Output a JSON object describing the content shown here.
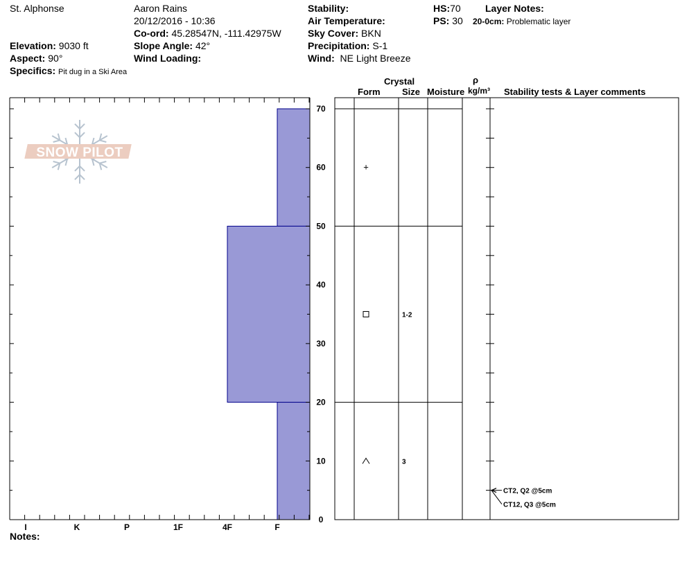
{
  "header": {
    "location": "St. Alphonse",
    "observer": "Aaron Rains",
    "datetime": "20/12/2016 - 10:36",
    "coord_label": "Co-ord:",
    "coord_value": "45.28547N, -111.42975W",
    "elevation_label": "Elevation:",
    "elevation_value": "9030 ft",
    "aspect_label": "Aspect:",
    "aspect_value": "90°",
    "specifics_label": "Specifics:",
    "specifics_value": "Pit dug in a Ski Area",
    "slope_label": "Slope Angle:",
    "slope_value": "42°",
    "wind_loading_label": "Wind Loading:",
    "wind_loading_value": "",
    "stability_label": "Stability:",
    "stability_value": "",
    "air_temp_label": "Air Temperature:",
    "air_temp_value": "",
    "sky_label": "Sky Cover:",
    "sky_value": "BKN",
    "precip_label": "Precipitation:",
    "precip_value": "S-1",
    "wind_label": "Wind:",
    "wind_value": "NE Light Breeze",
    "hs_label": "HS:",
    "hs_value": "70",
    "ps_label": "PS:",
    "ps_value": "30",
    "layer_notes_label": "Layer Notes:",
    "layer_note_range": "20-0cm:",
    "layer_note_text": "Problematic layer"
  },
  "logo_text": "SNOW PILOT",
  "notes_label": "Notes:",
  "table_headers": {
    "crystal": "Crystal",
    "form": "Form",
    "size": "Size",
    "moisture": "Moisture",
    "rho": "ρ",
    "density_unit": "kg/m³",
    "comments": "Stability tests & Layer comments"
  },
  "colors": {
    "hardness_fill": "#9999d6",
    "hardness_stroke": "#00008b"
  },
  "chart_data": {
    "type": "bar",
    "orientation": "horizontal-step",
    "y_axis": {
      "label": "",
      "range": [
        0,
        70
      ],
      "ticks": [
        0,
        10,
        20,
        30,
        40,
        50,
        60,
        70
      ]
    },
    "x_axis": {
      "label": "",
      "categories": [
        "I",
        "K",
        "P",
        "1F",
        "4F",
        "F"
      ],
      "reversed": true
    },
    "layers": [
      {
        "top": 70,
        "bottom": 50,
        "hardness": "F"
      },
      {
        "top": 50,
        "bottom": 20,
        "hardness": "4F"
      },
      {
        "top": 20,
        "bottom": 0,
        "hardness": "F"
      }
    ],
    "layer_boundaries": [
      70,
      50,
      20
    ],
    "crystals": [
      {
        "depth": 60,
        "form": "+",
        "size": ""
      },
      {
        "depth": 35,
        "form": "□",
        "size": "1-2"
      },
      {
        "depth": 10,
        "form": "^",
        "size": "3"
      }
    ],
    "tests": [
      {
        "depth": 5,
        "text": "CT2, Q2 @5cm"
      },
      {
        "depth": 5,
        "text": "CT12, Q3 @5cm"
      }
    ]
  }
}
